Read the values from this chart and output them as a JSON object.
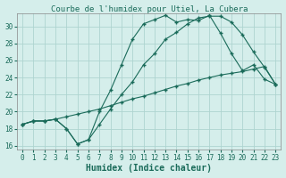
{
  "title": "Courbe de l'humidex pour Utiel, La Cubera",
  "xlabel": "Humidex (Indice chaleur)",
  "bg_color": "#d5eeeb",
  "grid_color": "#aed4d0",
  "line_color": "#1a6b5a",
  "xlim": [
    -0.5,
    23.5
  ],
  "ylim": [
    15.5,
    31.5
  ],
  "xticks": [
    0,
    1,
    2,
    3,
    4,
    5,
    6,
    7,
    8,
    9,
    10,
    11,
    12,
    13,
    14,
    15,
    16,
    17,
    18,
    19,
    20,
    21,
    22,
    23
  ],
  "yticks": [
    16,
    18,
    20,
    22,
    24,
    26,
    28,
    30
  ],
  "line1_x": [
    0,
    1,
    2,
    3,
    4,
    5,
    6,
    7,
    8,
    9,
    10,
    11,
    12,
    13,
    14,
    15,
    16,
    17,
    18,
    19,
    20,
    21,
    22,
    23
  ],
  "line1_y": [
    18.5,
    18.9,
    18.9,
    19.1,
    19.4,
    19.7,
    20.0,
    20.3,
    20.7,
    21.1,
    21.5,
    21.8,
    22.2,
    22.6,
    23.0,
    23.3,
    23.7,
    24.0,
    24.3,
    24.5,
    24.7,
    25.0,
    25.3,
    23.2
  ],
  "line2_x": [
    0,
    1,
    2,
    3,
    4,
    5,
    6,
    7,
    8,
    9,
    10,
    11,
    12,
    13,
    14,
    15,
    16,
    17,
    18,
    19,
    20,
    21,
    22,
    23
  ],
  "line2_y": [
    18.5,
    18.9,
    18.9,
    19.1,
    18.0,
    16.2,
    16.7,
    18.5,
    20.3,
    22.0,
    23.5,
    25.5,
    26.8,
    28.5,
    29.3,
    30.3,
    31.0,
    31.2,
    31.2,
    30.5,
    29.0,
    27.0,
    25.2,
    23.2
  ],
  "line3_x": [
    0,
    1,
    2,
    3,
    4,
    5,
    6,
    7,
    8,
    9,
    10,
    11,
    12,
    13,
    14,
    15,
    16,
    17,
    18,
    19,
    20,
    21,
    22,
    23
  ],
  "line3_y": [
    18.5,
    18.9,
    18.9,
    19.1,
    18.0,
    16.2,
    16.7,
    20.0,
    22.5,
    25.5,
    28.5,
    30.3,
    30.8,
    31.3,
    30.5,
    30.8,
    30.7,
    31.3,
    29.2,
    26.8,
    24.8,
    25.5,
    23.8,
    23.2
  ],
  "title_fontsize": 6.5,
  "tick_fontsize": 5.5,
  "label_fontsize": 7.0
}
